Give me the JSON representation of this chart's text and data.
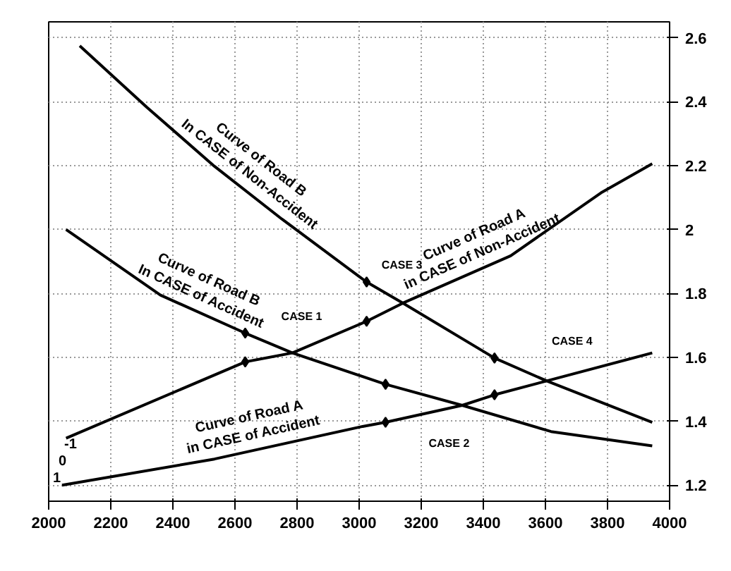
{
  "chart_data": {
    "type": "line",
    "xlim": [
      2000,
      4000
    ],
    "ylim": [
      1.15,
      2.65
    ],
    "xticks": [
      2000,
      2200,
      2400,
      2600,
      2800,
      3000,
      3200,
      3400,
      3600,
      3800,
      4000
    ],
    "yticks": [
      1.2,
      1.4,
      1.6,
      1.8,
      2,
      2.2,
      2.4,
      2.6
    ],
    "grid": true,
    "line_style": "solid",
    "series": [
      {
        "name": "Curve of Road B\nIn CASE of Non-Accident",
        "color": "#000000",
        "x": [
          2100,
          2317,
          2534,
          2751,
          3024,
          3141,
          3436,
          3610,
          3944
        ],
        "values": [
          2.575,
          2.382,
          2.198,
          2.033,
          1.836,
          1.77,
          1.598,
          1.524,
          1.397
        ]
      },
      {
        "name": "Curve of Road B\nIn CASE of Accident",
        "color": "#000000",
        "x": [
          2056,
          2360,
          2633,
          2785,
          3085,
          3332,
          3618,
          3944
        ],
        "values": [
          2.0,
          1.795,
          1.676,
          1.614,
          1.516,
          1.45,
          1.368,
          1.323
        ]
      },
      {
        "name": "Curve of Road A\nin CASE of Non-Accident",
        "color": "#000000",
        "x": [
          2056,
          2633,
          2785,
          3024,
          3141,
          3488,
          3779,
          3944
        ],
        "values": [
          1.347,
          1.586,
          1.614,
          1.713,
          1.77,
          1.918,
          2.115,
          2.206
        ]
      },
      {
        "name": "Curve of Road A\nin CASE of Accident",
        "color": "#000000",
        "x": [
          2043,
          2534,
          3011,
          3085,
          3332,
          3436,
          3944
        ],
        "values": [
          1.2,
          1.282,
          1.384,
          1.397,
          1.45,
          1.483,
          1.614
        ]
      },
      {
        "type": "scatter",
        "marker": "diamond",
        "color": "#000000",
        "x": [
          2633,
          2633,
          3024,
          3024,
          3085,
          3085,
          3436,
          3436
        ],
        "values": [
          1.676,
          1.586,
          1.836,
          1.713,
          1.516,
          1.397,
          1.598,
          1.483
        ]
      }
    ],
    "annotations": [
      "CASE 1",
      "CASE 2",
      "CASE 3",
      "CASE 4",
      "1",
      "0",
      "-1"
    ]
  }
}
